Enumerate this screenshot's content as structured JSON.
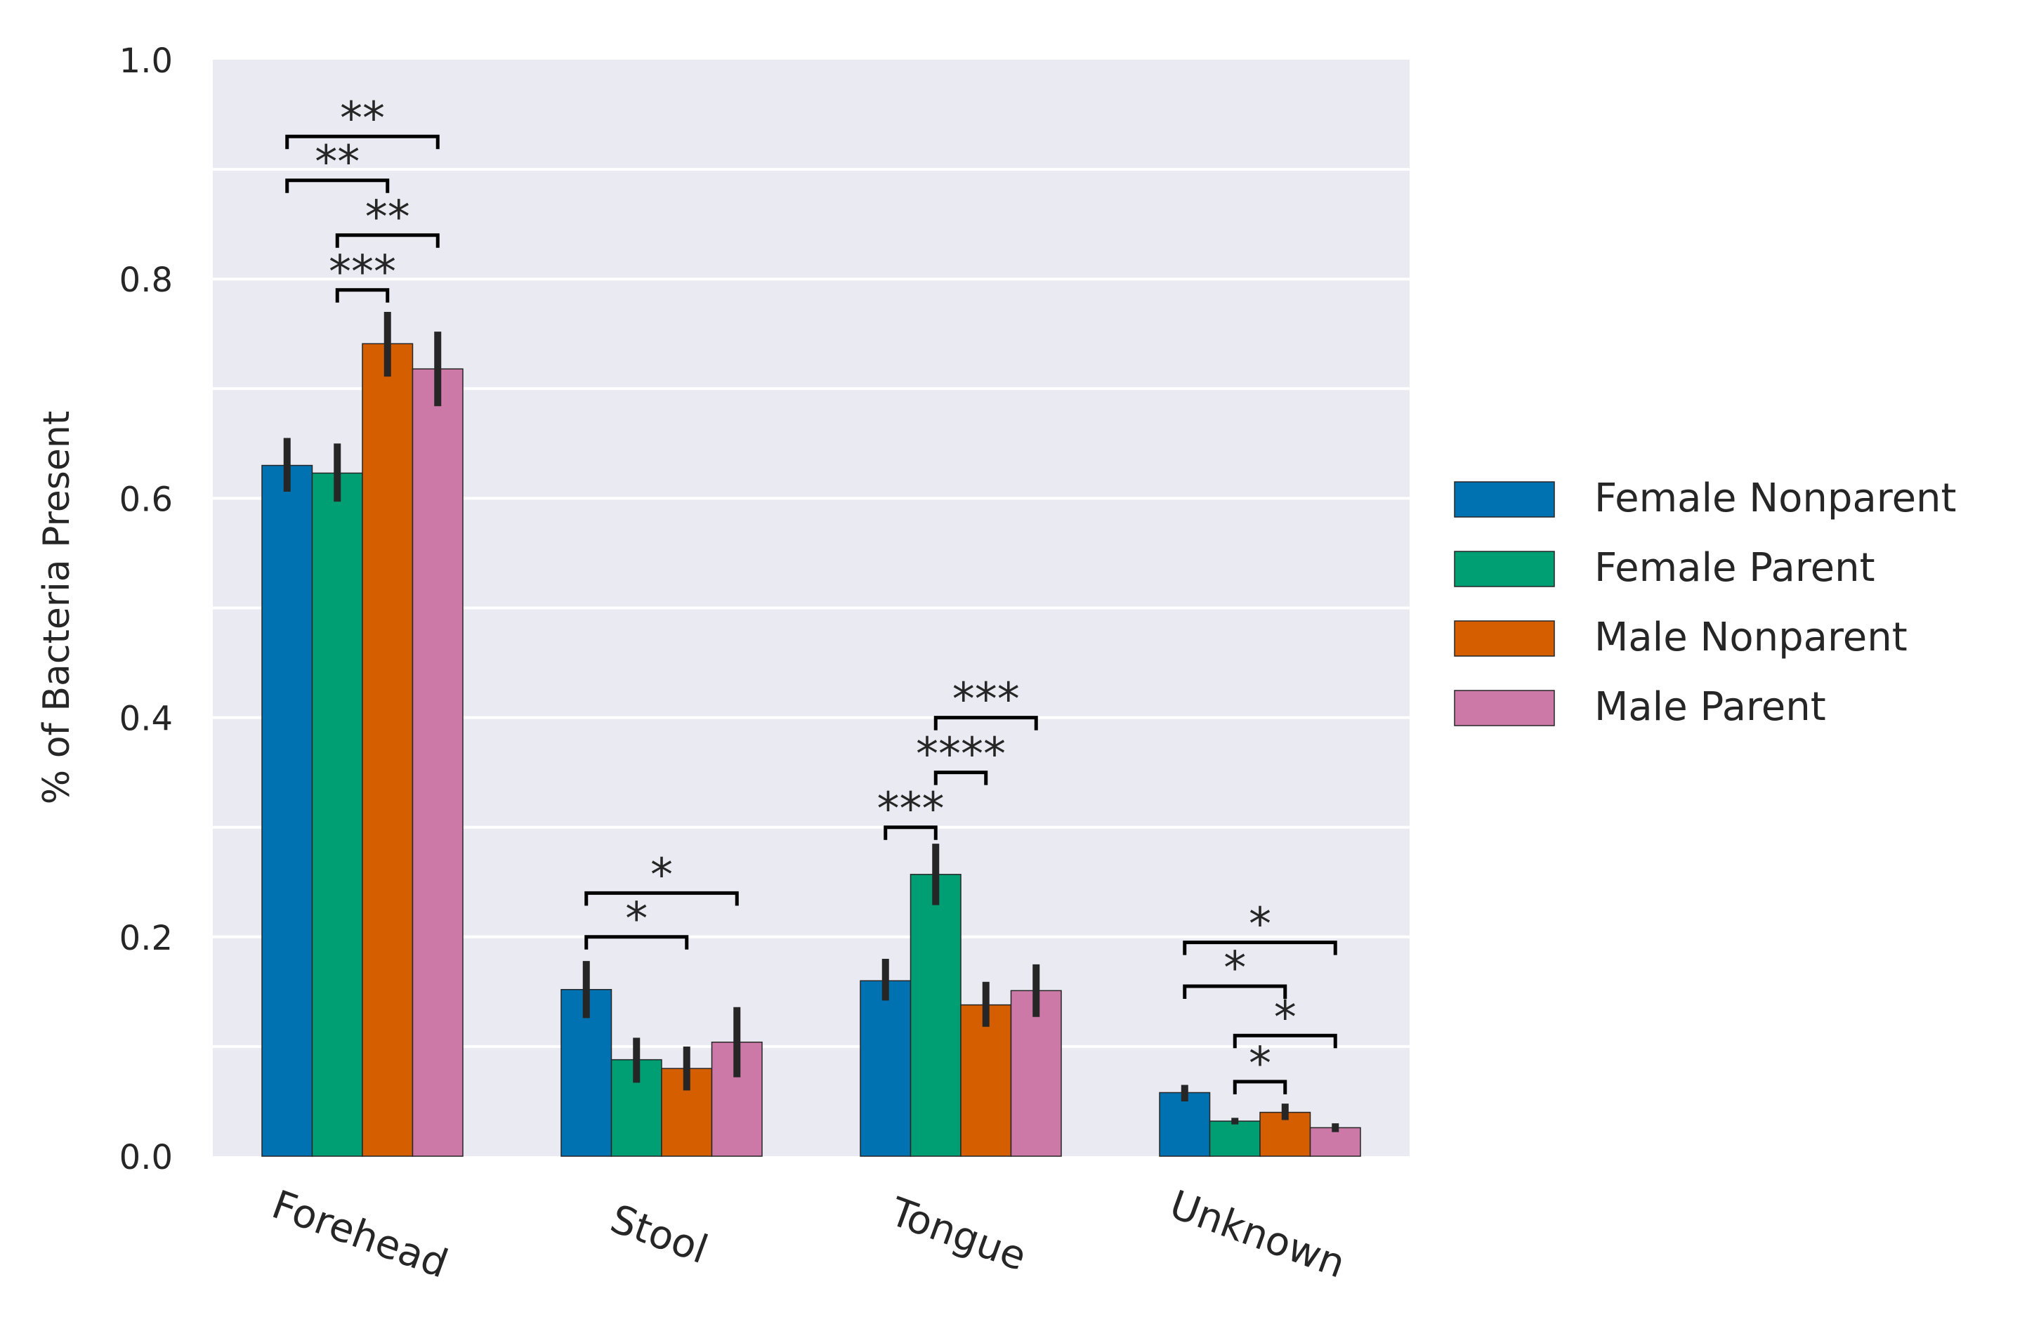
{
  "chart_data": {
    "type": "bar",
    "ylabel": "% of Bacteria Present",
    "xlabel": "",
    "ylim": [
      0.0,
      1.0
    ],
    "yticks": [
      "0.0",
      "0.2",
      "0.4",
      "0.6",
      "0.8",
      "1.0"
    ],
    "ytick_values": [
      0.0,
      0.2,
      0.4,
      0.6,
      0.8,
      1.0
    ],
    "gridlines": [
      0.1,
      0.2,
      0.3,
      0.4,
      0.5,
      0.6,
      0.7,
      0.8,
      0.9
    ],
    "grid": true,
    "legend_position": "right",
    "categories": [
      "Forehead",
      "Stool",
      "Tongue",
      "Unknown"
    ],
    "series": [
      {
        "name": "Female Nonparent",
        "color": "#0072b2",
        "values": [
          0.63,
          0.152,
          0.16,
          0.058
        ],
        "err_low": [
          0.606,
          0.126,
          0.142,
          0.05
        ],
        "err_high": [
          0.655,
          0.178,
          0.18,
          0.065
        ]
      },
      {
        "name": "Female Parent",
        "color": "#009e73",
        "values": [
          0.623,
          0.088,
          0.257,
          0.032
        ],
        "err_low": [
          0.597,
          0.067,
          0.229,
          0.029
        ],
        "err_high": [
          0.65,
          0.108,
          0.285,
          0.035
        ]
      },
      {
        "name": "Male Nonparent",
        "color": "#d55e00",
        "values": [
          0.741,
          0.08,
          0.138,
          0.04
        ],
        "err_low": [
          0.711,
          0.06,
          0.118,
          0.033
        ],
        "err_high": [
          0.77,
          0.1,
          0.159,
          0.048
        ]
      },
      {
        "name": "Male Parent",
        "color": "#cc79a7",
        "values": [
          0.718,
          0.104,
          0.151,
          0.026
        ],
        "err_low": [
          0.684,
          0.072,
          0.127,
          0.022
        ],
        "err_high": [
          0.752,
          0.136,
          0.175,
          0.03
        ]
      }
    ],
    "annotations": [
      {
        "category": 0,
        "from": 0,
        "to": 3,
        "y": 0.93,
        "label": "**"
      },
      {
        "category": 0,
        "from": 0,
        "to": 2,
        "y": 0.89,
        "label": "**"
      },
      {
        "category": 0,
        "from": 1,
        "to": 3,
        "y": 0.84,
        "label": "**"
      },
      {
        "category": 0,
        "from": 1,
        "to": 2,
        "y": 0.79,
        "label": "***"
      },
      {
        "category": 1,
        "from": 0,
        "to": 3,
        "y": 0.24,
        "label": "*"
      },
      {
        "category": 1,
        "from": 0,
        "to": 2,
        "y": 0.2,
        "label": "*"
      },
      {
        "category": 2,
        "from": 1,
        "to": 3,
        "y": 0.4,
        "label": "***"
      },
      {
        "category": 2,
        "from": 1,
        "to": 2,
        "y": 0.35,
        "label": "****"
      },
      {
        "category": 2,
        "from": 0,
        "to": 1,
        "y": 0.3,
        "label": "***"
      },
      {
        "category": 3,
        "from": 0,
        "to": 3,
        "y": 0.195,
        "label": "*"
      },
      {
        "category": 3,
        "from": 0,
        "to": 2,
        "y": 0.155,
        "label": "*"
      },
      {
        "category": 3,
        "from": 1,
        "to": 3,
        "y": 0.11,
        "label": "*"
      },
      {
        "category": 3,
        "from": 1,
        "to": 2,
        "y": 0.068,
        "label": "*"
      }
    ]
  }
}
